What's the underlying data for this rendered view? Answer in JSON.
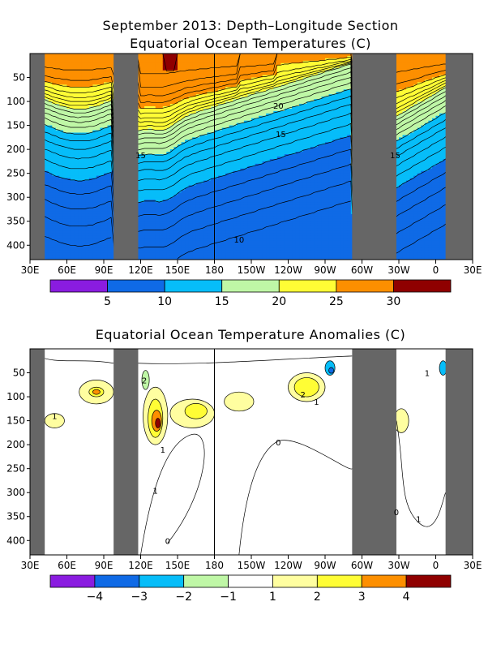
{
  "chart_data": [
    {
      "type": "heatmap",
      "title": "September 2013: Depth–Longitude Section",
      "subtitle": "Equatorial Ocean Temperatures (C)",
      "xlabel": "",
      "ylabel": "",
      "x_ticks": [
        "30E",
        "60E",
        "90E",
        "120E",
        "150E",
        "180",
        "150W",
        "120W",
        "90W",
        "60W",
        "30W",
        "0",
        "30E"
      ],
      "x_lon": [
        30,
        60,
        90,
        120,
        150,
        180,
        210,
        240,
        270,
        300,
        330,
        360,
        390
      ],
      "y_ticks": [
        50,
        100,
        150,
        200,
        250,
        300,
        350,
        400
      ],
      "ylim": [
        0,
        430
      ],
      "land_bands_lon": [
        [
          30,
          42
        ],
        [
          98,
          118
        ],
        [
          292,
          328
        ],
        [
          368,
          390
        ]
      ],
      "contour_labels": [
        {
          "text": "20",
          "lon": 232,
          "depth": 108
        },
        {
          "text": "15",
          "lon": 234,
          "depth": 168
        },
        {
          "text": "15",
          "lon": 120,
          "depth": 212
        },
        {
          "text": "15",
          "lon": 327,
          "depth": 212
        },
        {
          "text": "10",
          "lon": 200,
          "depth": 388
        }
      ],
      "colorbar": {
        "colors": [
          "#8a1ce0",
          "#0f6ae6",
          "#06bdf9",
          "#bff7a6",
          "#fffd35",
          "#fd8f00",
          "#8f0000"
        ],
        "labels": [
          "5",
          "10",
          "15",
          "20",
          "25",
          "30"
        ]
      }
    },
    {
      "type": "heatmap",
      "title": "Equatorial Ocean Temperature Anomalies (C)",
      "xlabel": "",
      "ylabel": "",
      "x_ticks": [
        "30E",
        "60E",
        "90E",
        "120E",
        "150E",
        "180",
        "150W",
        "120W",
        "90W",
        "60W",
        "30W",
        "0",
        "30E"
      ],
      "x_lon": [
        30,
        60,
        90,
        120,
        150,
        180,
        210,
        240,
        270,
        300,
        330,
        360,
        390
      ],
      "y_ticks": [
        50,
        100,
        150,
        200,
        250,
        300,
        350,
        400
      ],
      "ylim": [
        0,
        430
      ],
      "land_bands_lon": [
        [
          30,
          42
        ],
        [
          98,
          118
        ],
        [
          292,
          328
        ],
        [
          368,
          390
        ]
      ],
      "contour_labels": [
        {
          "text": "1",
          "lon": 50,
          "depth": 140
        },
        {
          "text": "2",
          "lon": 123,
          "depth": 65
        },
        {
          "text": "1",
          "lon": 138,
          "depth": 210
        },
        {
          "text": "1",
          "lon": 132,
          "depth": 295
        },
        {
          "text": "0",
          "lon": 232,
          "depth": 195
        },
        {
          "text": "2",
          "lon": 252,
          "depth": 95
        },
        {
          "text": "1",
          "lon": 263,
          "depth": 110
        },
        {
          "text": "0",
          "lon": 142,
          "depth": 400
        },
        {
          "text": "0",
          "lon": 328,
          "depth": 340
        },
        {
          "text": "1",
          "lon": 346,
          "depth": 355
        },
        {
          "text": "1",
          "lon": 353,
          "depth": 50
        }
      ],
      "colorbar": {
        "colors": [
          "#8a1ce0",
          "#0f6ae6",
          "#06bdf9",
          "#bff7a6",
          "#ffffff",
          "#fffea0",
          "#fffd35",
          "#fd8f00",
          "#8f0000"
        ],
        "labels": [
          "−4",
          "−3",
          "−2",
          "−1",
          "1",
          "2",
          "3",
          "4"
        ]
      }
    }
  ]
}
